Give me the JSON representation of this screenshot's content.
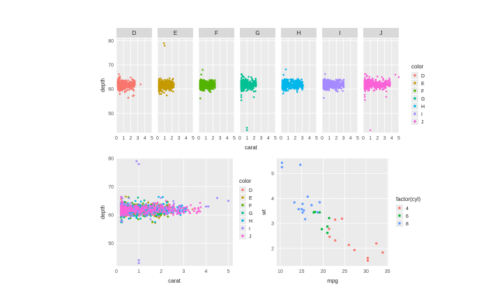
{
  "chart_data": [
    {
      "type": "scatter",
      "title": "",
      "xlabel": "carat",
      "ylabel": "depth",
      "facets": [
        "D",
        "E",
        "F",
        "G",
        "H",
        "I",
        "J"
      ],
      "xlim": [
        0,
        5
      ],
      "ylim": [
        42,
        81
      ],
      "x_ticks": [
        0,
        1,
        2,
        3,
        4,
        5
      ],
      "y_ticks": [
        50,
        60,
        70,
        80
      ],
      "grid": true,
      "legend_title": "color",
      "legend_position": "right",
      "series": [
        {
          "name": "D",
          "color": "#F8766D",
          "x_range": [
            0.2,
            3.4
          ],
          "y_center": 61.8,
          "y_range": [
            52,
            72
          ],
          "outliers": [
            [
              3.4,
              62
            ]
          ]
        },
        {
          "name": "E",
          "color": "#C49A00",
          "x_range": [
            0.2,
            3.0
          ],
          "y_center": 61.7,
          "y_range": [
            55,
            79
          ],
          "outliers": [
            [
              0.9,
              79
            ],
            [
              1.0,
              78
            ]
          ]
        },
        {
          "name": "F",
          "color": "#53B400",
          "x_range": [
            0.2,
            3.0
          ],
          "y_center": 61.7,
          "y_range": [
            55,
            72
          ],
          "outliers": []
        },
        {
          "name": "G",
          "color": "#00C094",
          "x_range": [
            0.2,
            3.0
          ],
          "y_center": 61.8,
          "y_range": [
            43,
            73
          ],
          "outliers": [
            [
              1.0,
              44
            ],
            [
              1.0,
              43
            ]
          ]
        },
        {
          "name": "H",
          "color": "#00B6EB",
          "x_range": [
            0.2,
            4.1
          ],
          "y_center": 61.9,
          "y_range": [
            53,
            71
          ],
          "outliers": []
        },
        {
          "name": "I",
          "color": "#A58AFF",
          "x_range": [
            0.2,
            4.0
          ],
          "y_center": 61.9,
          "y_range": [
            52,
            71
          ],
          "outliers": []
        },
        {
          "name": "J",
          "color": "#FB61D7",
          "x_range": [
            0.2,
            5.0
          ],
          "y_center": 61.9,
          "y_range": [
            43,
            73
          ],
          "outliers": [
            [
              5.0,
              65
            ],
            [
              4.5,
              66
            ],
            [
              1.0,
              43
            ]
          ]
        }
      ]
    },
    {
      "type": "scatter",
      "title": "",
      "xlabel": "carat",
      "ylabel": "depth",
      "xlim": [
        0,
        5.2
      ],
      "ylim": [
        42,
        80
      ],
      "x_ticks": [
        0,
        1,
        2,
        3,
        4,
        5
      ],
      "y_ticks": [
        50,
        60,
        70,
        80
      ],
      "grid": true,
      "legend_title": "color",
      "legend_position": "right",
      "series": [
        {
          "name": "D",
          "color": "#F8766D"
        },
        {
          "name": "E",
          "color": "#C49A00"
        },
        {
          "name": "F",
          "color": "#53B400"
        },
        {
          "name": "G",
          "color": "#00C094"
        },
        {
          "name": "H",
          "color": "#00B6EB"
        },
        {
          "name": "I",
          "color": "#A58AFF"
        },
        {
          "name": "J",
          "color": "#FB61D7"
        }
      ],
      "note_points": [
        [
          5.0,
          65
        ],
        [
          4.5,
          66
        ],
        [
          4.1,
          63
        ],
        [
          4.0,
          63
        ],
        [
          0.9,
          79
        ],
        [
          1.0,
          78
        ],
        [
          1.0,
          44
        ],
        [
          1.0,
          43
        ]
      ]
    },
    {
      "type": "scatter",
      "title": "",
      "xlabel": "mpg",
      "ylabel": "wt",
      "xlim": [
        9.2,
        35.2
      ],
      "ylim": [
        1.3,
        5.6
      ],
      "x_ticks": [
        10,
        15,
        20,
        25,
        30,
        35
      ],
      "y_ticks": [
        2,
        3,
        4,
        5
      ],
      "grid": true,
      "legend_title": "factor(cyl)",
      "legend_position": "right",
      "series": [
        {
          "name": "4",
          "color": "#F8766D",
          "points": [
            [
              22.8,
              2.32
            ],
            [
              24.4,
              3.19
            ],
            [
              22.8,
              3.15
            ],
            [
              32.4,
              2.2
            ],
            [
              30.4,
              1.615
            ],
            [
              33.9,
              1.835
            ],
            [
              21.5,
              2.465
            ],
            [
              27.3,
              1.935
            ],
            [
              26.0,
              2.14
            ],
            [
              30.4,
              1.513
            ],
            [
              21.4,
              2.78
            ]
          ]
        },
        {
          "name": "6",
          "color": "#00BA38",
          "points": [
            [
              21.0,
              2.62
            ],
            [
              21.0,
              2.875
            ],
            [
              21.4,
              3.215
            ],
            [
              18.1,
              3.46
            ],
            [
              19.2,
              3.44
            ],
            [
              17.8,
              3.44
            ],
            [
              19.7,
              2.77
            ]
          ]
        },
        {
          "name": "8",
          "color": "#619CFF",
          "points": [
            [
              18.7,
              3.44
            ],
            [
              14.3,
              3.57
            ],
            [
              16.4,
              4.07
            ],
            [
              17.3,
              3.73
            ],
            [
              15.2,
              3.78
            ],
            [
              10.4,
              5.25
            ],
            [
              10.4,
              5.424
            ],
            [
              14.7,
              5.345
            ],
            [
              15.5,
              3.52
            ],
            [
              15.2,
              3.435
            ],
            [
              13.3,
              3.84
            ],
            [
              19.2,
              3.845
            ],
            [
              15.8,
              3.17
            ],
            [
              15.0,
              3.57
            ]
          ]
        }
      ]
    }
  ]
}
